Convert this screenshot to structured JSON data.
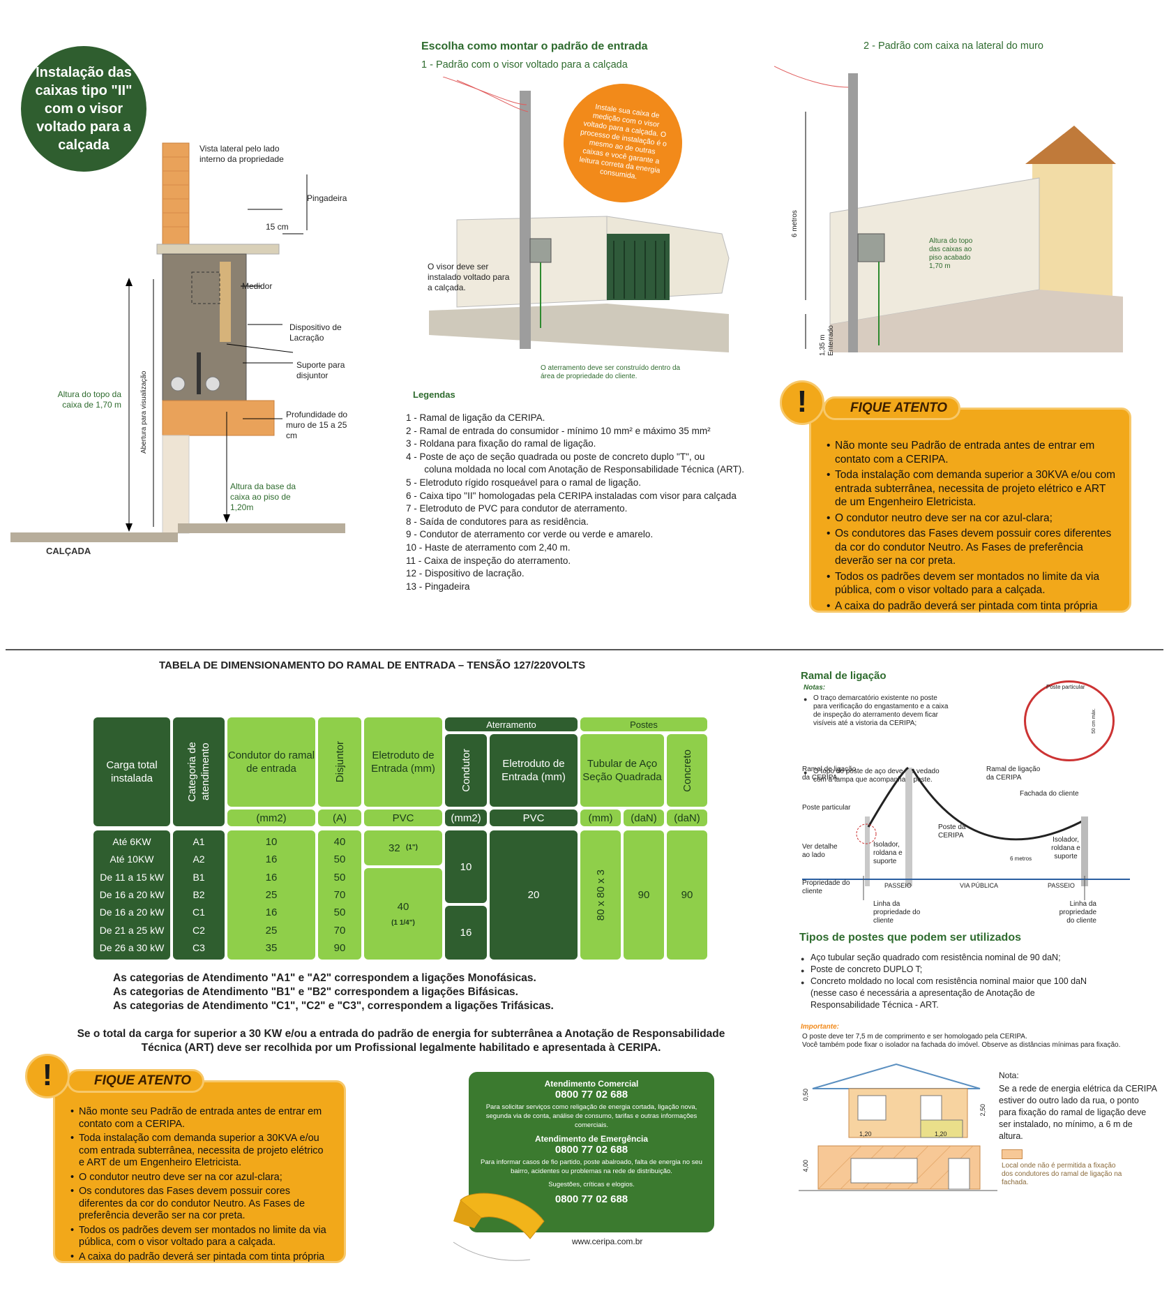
{
  "panel1": {
    "badge": "Instalação das caixas tipo \"II\" com o visor voltado para a calçada",
    "vista": "Vista lateral pelo lado interno da propriedade",
    "pingadeira": "Pingadeira",
    "dim_15cm": "15 cm",
    "medidor": "Medidor",
    "dispositivo": "Dispositivo de Lacração",
    "suporte": "Suporte para disjuntor",
    "abertura": "Abertura para visualização",
    "altura_topo": "Altura do topo da caixa de 1,70 m",
    "profundidade": "Profundidade do muro de 15 a 25 cm",
    "altura_base": "Altura da base da caixa ao piso de 1,20m",
    "calcada": "CALÇADA"
  },
  "panel2": {
    "title": "Escolha como montar o padrão de entrada",
    "subtitle": "1 - Padrão com o visor voltado para a calçada",
    "orange": "Instale sua caixa de medição com o visor voltado para a calçada. O processo de instalação é o mesmo ao de outras caixas e você garante a leitura correta da energia consumida.",
    "visor": "O visor deve ser instalado voltado para a calçada.",
    "aterramento": "O aterramento deve ser construído dentro da área de propriedade do cliente.",
    "legend_title": "Legendas",
    "legend": [
      "1 -  Ramal de ligação da CERIPA.",
      "2 -  Ramal de entrada do consumidor - mínimo 10 mm² e máximo 35 mm²",
      "3 -  Roldana para fixação do ramal de ligação.",
      "4 -  Poste de aço de seção quadrada ou poste de concreto duplo \"T\", ou",
      "       coluna moldada no local com Anotação de Responsabilidade Técnica (ART).",
      "5 -  Eletroduto rígido rosqueável para o ramal de ligação.",
      "6 -  Caixa tipo \"II\" homologadas pela CERIPA instaladas com visor para calçada",
      "7 -   Eletroduto de PVC para condutor de aterramento.",
      "8 -  Saída de condutores para as residência.",
      "9 -  Condutor de aterramento cor verde ou verde e amarelo.",
      "10 - Haste de aterramento com 2,40 m.",
      "11 - Caixa de inspeção do aterramento.",
      "12 - Dispositivo de lacração.",
      "13 - Pingadeira"
    ]
  },
  "panel3": {
    "title": "2 - Padrão com caixa na lateral do muro",
    "metros": "6 metros",
    "altura": "Altura do topo das caixas ao piso acabado 1,70 m",
    "enterrado": "1,35 m Enterrado"
  },
  "attention": {
    "label": "FIQUE ATENTO",
    "items": [
      "Não monte seu Padrão de entrada antes de entrar em contato com a CERIPA.",
      "Toda instalação com demanda superior a 30KVA e/ou com entrada subterrânea, necessita de projeto elétrico e ART de um Engenheiro Eletricista.",
      "O condutor neutro deve ser na cor azul-clara;",
      "Os condutores das Fases devem possuir cores diferentes da cor do condutor Neutro. As Fases de preferência deverão ser na cor preta.",
      "Todos os padrões devem ser montados no limite da via pública, com o visor voltado para a calçada.",
      "A caixa do padrão deverá ser pintada com tinta própria"
    ]
  },
  "table": {
    "title": "TABELA DE DIMENSIONAMENTO DO RAMAL DE ENTRADA – TENSÃO 127/220VOLTS",
    "headers": {
      "carga": "Carga total instalada",
      "categoria": "Categoria de atendimento",
      "condutor": "Condutor do ramal de entrada",
      "disjuntor": "Disjuntor",
      "eletroduto": "Eletroduto de Entrada (mm)",
      "aterramento": "Aterramento",
      "condutor_at": "Condutor",
      "eletroduto_at": "Eletroduto de Entrada (mm)",
      "postes": "Postes",
      "tubular": "Tubular de Aço Seção Quadrada",
      "concreto": "Concreto"
    },
    "units": [
      "(mm2)",
      "(A)",
      "PVC",
      "(mm2)",
      "PVC",
      "(mm)",
      "(daN)",
      "(daN)"
    ],
    "rows": [
      {
        "carga": "Até 6KW",
        "cat": "A1",
        "cond": "10",
        "disj": "40"
      },
      {
        "carga": "Até 10KW",
        "cat": "A2",
        "cond": "16",
        "disj": "50"
      },
      {
        "carga": "De  11 a 15 kW",
        "cat": "B1",
        "cond": "16",
        "disj": "50"
      },
      {
        "carga": "De 16 a 20 kW",
        "cat": "B2",
        "cond": "25",
        "disj": "70"
      },
      {
        "carga": "De 16 a 20 kW",
        "cat": "C1",
        "cond": "16",
        "disj": "50"
      },
      {
        "carga": "De 21 a 25 kW",
        "cat": "C2",
        "cond": "25",
        "disj": "70"
      },
      {
        "carga": "De 26 a 30 kW",
        "cat": "C3",
        "cond": "35",
        "disj": "90"
      }
    ],
    "eletro1": "32",
    "eletro1_sub": "(1\")",
    "eletro2": "40",
    "eletro2_sub": "(1 1/4\")",
    "at_cond1": "10",
    "at_cond2": "16",
    "at_eletro": "20",
    "tubular_mm": "80 x 80 x 3",
    "tubular_dan": "90",
    "concreto_dan": "90",
    "notes": [
      "As categorias de Atendimento \"A1\" e \"A2\" correspondem a ligações Monofásicas.",
      "As categorias de Atendimento \"B1\" e \"B2\" correspondem a ligações Bifásicas.",
      "As categorias de Atendimento \"C1\", \"C2\" e \"C3\", correspondem a ligações Trifásicas."
    ],
    "art_note": "Se o total da carga for superior a 30 KW e/ou a entrada do padrão de energia for subterrânea a Anotação de Responsabilidade Técnica (ART) deve ser recolhida por um Profissional legalmente habilitado e apresentada à CERIPA."
  },
  "contact": {
    "h1": "Atendimento Comercial",
    "ph1": "0800 77 02 688",
    "t1": "Para solicitar serviços como religação de energia cortada, ligação nova, segunda via de conta, análise de consumo, tarifas e outras informações comerciais.",
    "h2": "Atendimento de Emergência",
    "ph2": "0800 77 02 688",
    "t2": "Para informar casos de fio partido, poste abalroado, falta de energia no seu bairro, acidentes ou problemas na rede de distribuição.",
    "h3": "Sugestões, críticas e elogios.",
    "ph3": "0800 77 02 688",
    "url": "www.ceripa.com.br"
  },
  "ramal": {
    "title": "Ramal de ligação",
    "notas": "Notas:",
    "n1": "O traço demarcatório existente no poste para verificação do engastamento e a caixa de inspeção do aterramento devem ficar visíveis até a vistoria da CERIPA;",
    "n2": "O topo do poste de aço deve ser vedado com a tampa que acompanha o poste.",
    "poste_particular": "Poste particular",
    "ramal_ceripa": "Ramal de ligação da CERIPA",
    "fachada": "Fachada do cliente",
    "ver_detalhe": "Ver detalhe ao lado",
    "isolador": "Isolador, roldana e suporte",
    "poste_ceripa": "Poste da CERIPA",
    "seis_metros": "6 metros",
    "propriedade": "Propriedade do cliente",
    "passeio": "PASSEIO",
    "via": "VIA PÚBLICA",
    "linha": "Linha da propriedade do cliente",
    "mm50": "50 cm máx."
  },
  "tipos": {
    "title": "Tipos de postes que podem ser utilizados",
    "items": [
      "Aço tubular seção quadrado com resistência nominal de 90 daN;",
      "Poste de concreto DUPLO T;",
      "Concreto moldado no local com resistência nominal maior que 100 daN (nesse caso é necessária a apresentação de Anotação de Responsabilidade Técnica - ART."
    ],
    "importante": "Importante:",
    "imp1": "O poste deve ter 7,5 m de comprimento e ser homologado pela CERIPA.",
    "imp2": "Você também pode fixar o isolador na fachada do imóvel. Observe as distâncias mínimas para fixação.",
    "nota_title": "Nota:",
    "nota": "Se a rede de energia elétrica da CERIPA estiver do outro lado da rua, o ponto para fixação do ramal de ligação deve ser instalado, no mínimo, a 6 m de altura.",
    "local": "Local onde não é permitida a fixação dos condutores do ramal de ligação na fachada.",
    "d050": "0,50",
    "d250": "2,50",
    "d120": "1,20",
    "d400": "4,00"
  }
}
